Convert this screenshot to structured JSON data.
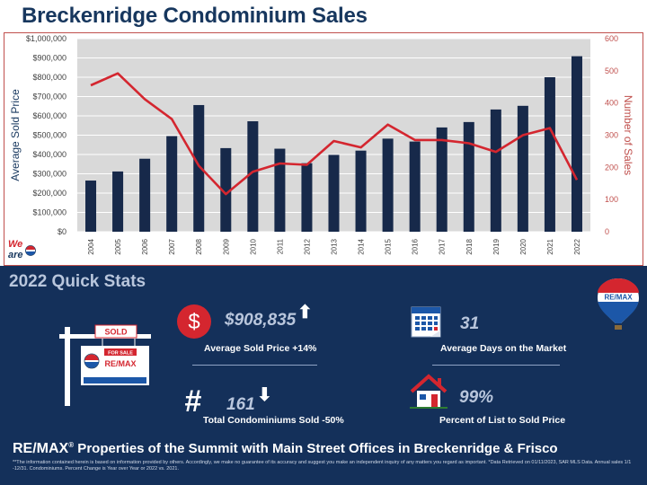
{
  "header": {
    "title": "Breckenridge Condominium Sales"
  },
  "chart_data": {
    "type": "bar",
    "categories": [
      "2004",
      "2005",
      "2006",
      "2007",
      "2008",
      "2009",
      "2010",
      "2011",
      "2012",
      "2013",
      "2014",
      "2015",
      "2016",
      "2017",
      "2018",
      "2019",
      "2020",
      "2021",
      "2022"
    ],
    "series": [
      {
        "type": "bar",
        "axis": "left",
        "color": "#17294a",
        "values": [
          265000,
          312000,
          378000,
          495000,
          656000,
          433000,
          572000,
          430000,
          355000,
          398000,
          420000,
          482000,
          467000,
          540000,
          568000,
          633000,
          652000,
          800000,
          908835
        ]
      },
      {
        "type": "line",
        "axis": "right",
        "color": "#d4262f",
        "values": [
          455,
          492,
          412,
          350,
          205,
          117,
          186,
          212,
          208,
          282,
          262,
          333,
          285,
          285,
          275,
          248,
          300,
          322,
          161
        ]
      }
    ],
    "ylabel": "Average Sold Price",
    "y2label": "Number of Sales",
    "ylim": [
      0,
      1000000
    ],
    "y2lim": [
      0,
      600
    ],
    "yticks": [
      "$0",
      "$100,000",
      "$200,000",
      "$300,000",
      "$400,000",
      "$500,000",
      "$600,000",
      "$700,000",
      "$800,000",
      "$900,000",
      "$1,000,000"
    ],
    "y2ticks": [
      "0",
      "100",
      "200",
      "300",
      "400",
      "500",
      "600"
    ],
    "grid": "horizontal",
    "legend": "none"
  },
  "logo": {
    "wear_text": "We are",
    "remax_short": "RE/MAX"
  },
  "stats": {
    "title": "2022 Quick Stats",
    "avg_price_value": "$908,835",
    "avg_price_label": "Average Sold Price +14%",
    "days_value": "31",
    "days_label": "Average Days on the Market",
    "total_value": "161",
    "total_label": "Total Condominiums Sold -50%",
    "pct_value": "99%",
    "pct_label": "Percent of List to Sold Price",
    "dollar_symbol": "$",
    "hash_symbol": "#",
    "up_arrow": "⬆",
    "down_arrow": "⬇",
    "sign_sold": "SOLD",
    "sign_for_sale": "FOR SALE",
    "sign_remax": "RE/MAX",
    "balloon_text": "RE/MAX"
  },
  "footer": {
    "brand": "RE/MAX",
    "tm": "®",
    "tagline": " Properties of the Summit with Main Street Offices in Breckenridge & Frisco",
    "fine_print": "**The information contained herein is based on information provided by others. Accordingly, we make no guarantee of its accuracy and suggest you make an independent inquiry of any matters you regard as important. *Data Retrieved on 01/11/2023, SAR MLS Data. Annual sales 1/1 -12/31. Condominiums. Percent Change is Year over Year or 2022 vs. 2021."
  },
  "colors": {
    "navy": "#17375e",
    "panel": "#14305a",
    "bar": "#17294a",
    "line": "#d4262f",
    "accent": "#c0504d"
  },
  "icons": [
    "dollar-circle-icon",
    "calendar-icon",
    "hash-icon",
    "house-icon",
    "for-sale-sign-icon",
    "remax-balloon-icon"
  ]
}
